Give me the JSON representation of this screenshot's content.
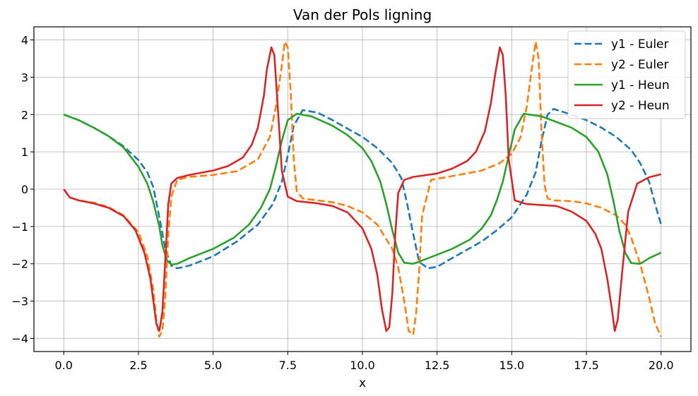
{
  "chart_data": {
    "type": "line",
    "title": "Van der Pols ligning",
    "xlabel": "x",
    "ylabel": "",
    "xlim": [
      -1.0,
      21.0
    ],
    "ylim": [
      -4.35,
      4.35
    ],
    "xticks": [
      0.0,
      2.5,
      5.0,
      7.5,
      10.0,
      12.5,
      15.0,
      17.5,
      20.0
    ],
    "xtick_labels": [
      "0.0",
      "2.5",
      "5.0",
      "7.5",
      "10.0",
      "12.5",
      "15.0",
      "17.5",
      "20.0"
    ],
    "yticks": [
      -4,
      -3,
      -2,
      -1,
      0,
      1,
      2,
      3,
      4
    ],
    "ytick_labels": [
      "−4",
      "−3",
      "−2",
      "−1",
      "0",
      "1",
      "2",
      "3",
      "4"
    ],
    "grid": true,
    "legend_position": "top-right",
    "series": [
      {
        "name": "y1 - Euler",
        "color": "#1f77b4",
        "dashed": true,
        "x": [
          0,
          0.5,
          1.0,
          1.5,
          2.0,
          2.5,
          2.8,
          3.0,
          3.2,
          3.4,
          3.6,
          3.8,
          4.2,
          5.0,
          5.8,
          6.5,
          7.0,
          7.3,
          7.5,
          7.7,
          8.0,
          8.5,
          9.0,
          9.5,
          10.0,
          10.5,
          11.0,
          11.3,
          11.5,
          11.7,
          11.9,
          12.2,
          12.5,
          13.0,
          14.0,
          14.5,
          15.0,
          15.5,
          15.8,
          16.0,
          16.2,
          16.4,
          17.0,
          17.5,
          18.0,
          18.5,
          19.0,
          19.3,
          19.6,
          19.8,
          20.0
        ],
        "y": [
          2.0,
          1.85,
          1.65,
          1.42,
          1.15,
          0.78,
          0.45,
          0.05,
          -0.75,
          -1.6,
          -2.05,
          -2.12,
          -2.05,
          -1.8,
          -1.4,
          -0.95,
          -0.4,
          0.2,
          0.9,
          1.7,
          2.12,
          2.05,
          1.85,
          1.62,
          1.4,
          1.1,
          0.7,
          0.3,
          -0.4,
          -1.2,
          -1.95,
          -2.12,
          -2.08,
          -1.85,
          -1.4,
          -1.1,
          -0.75,
          -0.15,
          0.45,
          1.3,
          2.0,
          2.15,
          2.0,
          1.85,
          1.65,
          1.4,
          1.05,
          0.7,
          0.2,
          -0.4,
          -0.95
        ]
      },
      {
        "name": "y2 - Euler",
        "color": "#ff7f0e",
        "dashed": true,
        "x": [
          0,
          0.2,
          0.5,
          1.0,
          1.5,
          2.0,
          2.5,
          2.8,
          3.0,
          3.1,
          3.2,
          3.3,
          3.4,
          3.5,
          3.6,
          3.8,
          4.2,
          5.0,
          5.8,
          6.5,
          6.9,
          7.1,
          7.3,
          7.4,
          7.5,
          7.6,
          7.7,
          7.8,
          8.0,
          8.5,
          9.0,
          9.5,
          10.0,
          10.5,
          11.0,
          11.2,
          11.4,
          11.55,
          11.7,
          11.8,
          11.9,
          12.0,
          12.3,
          13.0,
          14.0,
          14.6,
          15.0,
          15.3,
          15.5,
          15.65,
          15.8,
          15.9,
          16.0,
          16.1,
          16.2,
          16.4,
          17.0,
          17.5,
          18.0,
          18.5,
          18.8,
          19.0,
          19.3,
          19.6,
          19.8,
          20.0
        ],
        "y": [
          0,
          -0.22,
          -0.3,
          -0.36,
          -0.48,
          -0.7,
          -1.15,
          -1.8,
          -2.7,
          -3.5,
          -3.95,
          -3.8,
          -2.9,
          -1.2,
          -0.2,
          0.25,
          0.33,
          0.38,
          0.48,
          0.8,
          1.4,
          2.2,
          3.3,
          3.95,
          3.8,
          2.6,
          0.8,
          -0.05,
          -0.25,
          -0.3,
          -0.35,
          -0.45,
          -0.62,
          -0.95,
          -1.6,
          -2.1,
          -3.0,
          -3.8,
          -3.9,
          -3.3,
          -2.2,
          -0.7,
          0.25,
          0.35,
          0.5,
          0.7,
          0.95,
          1.4,
          2.2,
          3.1,
          3.95,
          3.5,
          1.5,
          0.1,
          -0.25,
          -0.3,
          -0.32,
          -0.38,
          -0.5,
          -0.7,
          -0.95,
          -1.3,
          -2.0,
          -2.9,
          -3.6,
          -3.95
        ]
      },
      {
        "name": "y1 - Heun",
        "color": "#2ca02c",
        "dashed": false,
        "x": [
          0,
          0.5,
          1.0,
          1.5,
          2.0,
          2.5,
          2.8,
          3.0,
          3.2,
          3.3,
          3.45,
          3.6,
          3.8,
          4.2,
          5.0,
          5.7,
          6.2,
          6.6,
          6.9,
          7.1,
          7.3,
          7.5,
          7.8,
          8.3,
          9.0,
          9.5,
          10.0,
          10.3,
          10.6,
          10.8,
          11.0,
          11.2,
          11.4,
          11.7,
          12.2,
          13.0,
          13.6,
          14.0,
          14.3,
          14.5,
          14.7,
          14.9,
          15.1,
          15.4,
          16.0,
          17.0,
          17.5,
          17.9,
          18.2,
          18.4,
          18.6,
          18.8,
          19.0,
          19.3,
          19.6,
          20.0
        ],
        "y": [
          2.0,
          1.85,
          1.65,
          1.42,
          1.12,
          0.6,
          0.15,
          -0.35,
          -1.0,
          -1.5,
          -1.9,
          -2.02,
          -2.0,
          -1.85,
          -1.6,
          -1.3,
          -0.95,
          -0.5,
          0.0,
          0.6,
          1.3,
          1.85,
          2.02,
          1.95,
          1.7,
          1.45,
          1.1,
          0.75,
          0.2,
          -0.4,
          -1.1,
          -1.7,
          -1.97,
          -2.0,
          -1.85,
          -1.6,
          -1.35,
          -1.05,
          -0.7,
          -0.3,
          0.2,
          0.9,
          1.6,
          2.02,
          1.95,
          1.65,
          1.4,
          1.0,
          0.4,
          -0.3,
          -1.1,
          -1.7,
          -1.98,
          -2.0,
          -1.85,
          -1.7
        ]
      },
      {
        "name": "y2 - Heun",
        "color": "#d62728",
        "dashed": false,
        "x": [
          0,
          0.2,
          0.5,
          1.0,
          1.5,
          2.0,
          2.4,
          2.7,
          2.9,
          3.0,
          3.1,
          3.2,
          3.3,
          3.4,
          3.5,
          3.6,
          3.8,
          4.2,
          5.0,
          5.5,
          6.0,
          6.3,
          6.5,
          6.7,
          6.8,
          6.95,
          7.05,
          7.15,
          7.3,
          7.5,
          7.8,
          8.5,
          9.0,
          9.5,
          10.0,
          10.3,
          10.5,
          10.65,
          10.8,
          10.9,
          11.0,
          11.1,
          11.2,
          11.4,
          11.7,
          12.5,
          13.0,
          13.5,
          13.8,
          14.1,
          14.3,
          14.45,
          14.6,
          14.7,
          14.8,
          14.9,
          15.1,
          15.5,
          16.5,
          17.0,
          17.5,
          17.8,
          18.0,
          18.2,
          18.35,
          18.45,
          18.55,
          18.7,
          18.9,
          19.2,
          19.6,
          20.0
        ],
        "y": [
          0,
          -0.22,
          -0.3,
          -0.38,
          -0.5,
          -0.72,
          -1.1,
          -1.7,
          -2.4,
          -3.0,
          -3.6,
          -3.8,
          -3.3,
          -1.9,
          -0.4,
          0.15,
          0.3,
          0.38,
          0.5,
          0.62,
          0.85,
          1.2,
          1.65,
          2.5,
          3.2,
          3.8,
          3.6,
          2.4,
          0.5,
          -0.2,
          -0.32,
          -0.38,
          -0.45,
          -0.62,
          -1.05,
          -1.6,
          -2.3,
          -3.2,
          -3.8,
          -3.7,
          -2.8,
          -1.2,
          -0.1,
          0.25,
          0.33,
          0.42,
          0.55,
          0.75,
          1.0,
          1.55,
          2.3,
          3.1,
          3.8,
          3.6,
          2.5,
          0.8,
          -0.3,
          -0.4,
          -0.45,
          -0.6,
          -0.85,
          -1.2,
          -1.6,
          -2.4,
          -3.2,
          -3.8,
          -3.5,
          -2.2,
          -0.6,
          0.15,
          0.32,
          0.4
        ]
      }
    ]
  }
}
